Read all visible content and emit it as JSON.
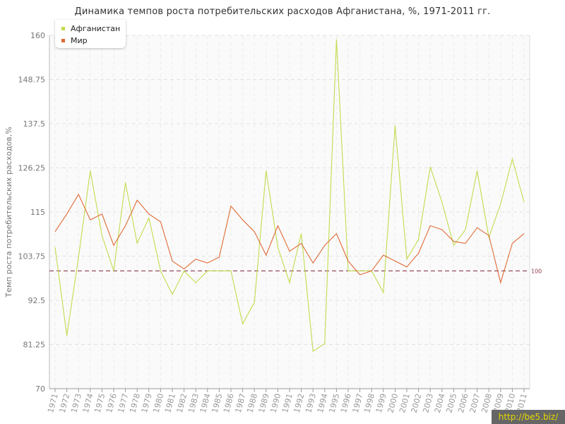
{
  "chart_data": {
    "type": "line",
    "title": "Динамика темпов роста потребительских расходов Афганистана, %, 1971-2011 гг.",
    "ylabel": "Темп роста потребительских расходов,%",
    "xlabel": "",
    "ylim": [
      70,
      160
    ],
    "yticks": [
      "70",
      "81.25",
      "92.5",
      "103.75",
      "115",
      "126.25",
      "137.5",
      "148.75",
      "160"
    ],
    "x": [
      "1971",
      "1972",
      "1973",
      "1974",
      "1975",
      "1976",
      "1977",
      "1978",
      "1979",
      "1980",
      "1981",
      "1982",
      "1983",
      "1984",
      "1985",
      "1986",
      "1987",
      "1988",
      "1989",
      "1990",
      "1991",
      "1992",
      "1993",
      "1994",
      "1995",
      "1996",
      "1997",
      "1998",
      "1999",
      "2000",
      "2001",
      "2002",
      "2003",
      "2004",
      "2005",
      "2006",
      "2007",
      "2008",
      "2009",
      "2010",
      "2011"
    ],
    "series": [
      {
        "name": "Афганистан",
        "color": "#c2dc4e",
        "values": [
          106,
          83.5,
          103.5,
          125.5,
          109,
          100,
          122.5,
          107,
          113.5,
          100,
          94,
          100,
          97,
          100,
          100,
          100,
          86.5,
          92,
          125.5,
          106,
          97,
          109.5,
          79.5,
          81.5,
          159,
          100,
          100,
          100,
          94.5,
          137,
          103,
          108,
          126.5,
          117.5,
          106.5,
          110.5,
          125.5,
          108.5,
          117,
          128.5,
          117.5
        ]
      },
      {
        "name": "Мир",
        "color": "#e06a35",
        "values": [
          110,
          114.5,
          119.5,
          113,
          114.5,
          106.5,
          111.5,
          118,
          114.5,
          112.5,
          102.5,
          100.5,
          103,
          102,
          103.5,
          116.5,
          113,
          110,
          104,
          111.5,
          105,
          107,
          102,
          106.5,
          109.5,
          102.5,
          99,
          100,
          104,
          102.5,
          101,
          104.5,
          111.5,
          110.5,
          107.5,
          107,
          111,
          109,
          97,
          107,
          109.5
        ]
      }
    ],
    "reference_line": {
      "value": 100,
      "label": "100",
      "color": "#8b3a4a"
    },
    "grid": true,
    "legend": "top-left"
  },
  "watermark": "http://be5.biz/"
}
